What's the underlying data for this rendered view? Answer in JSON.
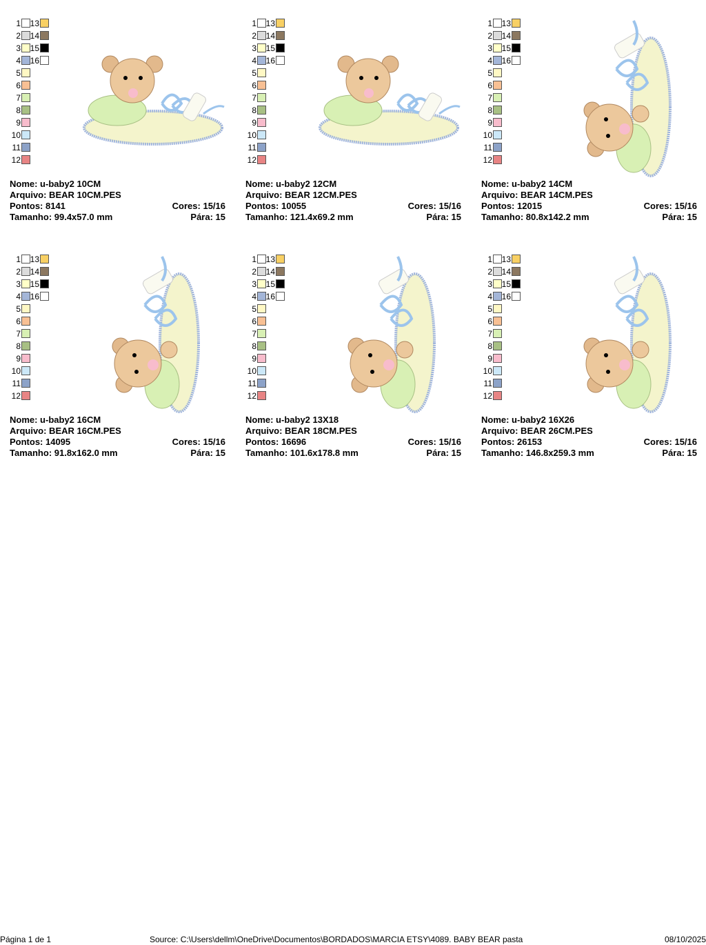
{
  "palette": [
    {
      "label": "1",
      "color": "#ffffff"
    },
    {
      "label": "2",
      "color": "#dcdcdc"
    },
    {
      "label": "3",
      "color": "#ffffc8"
    },
    {
      "label": "4",
      "color": "#a4b6d8"
    },
    {
      "label": "5",
      "color": "#fff8c4"
    },
    {
      "label": "6",
      "color": "#f8c094"
    },
    {
      "label": "7",
      "color": "#d8f0b4"
    },
    {
      "label": "8",
      "color": "#a8c084"
    },
    {
      "label": "9",
      "color": "#f8bccc"
    },
    {
      "label": "10",
      "color": "#cce8f8"
    },
    {
      "label": "11",
      "color": "#8ca2c8"
    },
    {
      "label": "12",
      "color": "#e88484"
    },
    {
      "label": "13",
      "color": "#f8d064"
    },
    {
      "label": "14",
      "color": "#8c7860"
    },
    {
      "label": "15",
      "color": "#000000"
    },
    {
      "label": "16",
      "color": "#ffffff"
    }
  ],
  "designs": [
    {
      "name": "Nome: u-baby2 10CM",
      "file": "Arquivo: BEAR 10CM.PES",
      "points": "Pontos: 8141",
      "colors": "Cores: 15/16",
      "size": "Tamanho: 99.4x57.0 mm",
      "stops": "Pára: 15"
    },
    {
      "name": "Nome: u-baby2 12CM",
      "file": "Arquivo: BEAR 12CM.PES",
      "points": "Pontos: 10055",
      "colors": "Cores: 15/16",
      "size": "Tamanho: 121.4x69.2 mm",
      "stops": "Pára: 15"
    },
    {
      "name": "Nome: u-baby2 14CM",
      "file": "Arquivo: BEAR 14CM.PES",
      "points": "Pontos: 12015",
      "colors": "Cores: 15/16",
      "size": "Tamanho: 80.8x142.2 mm",
      "stops": "Pára: 15"
    },
    {
      "name": "Nome: u-baby2 16CM",
      "file": "Arquivo: BEAR 16CM.PES",
      "points": "Pontos: 14095",
      "colors": "Cores: 15/16",
      "size": "Tamanho: 91.8x162.0 mm",
      "stops": "Pára: 15"
    },
    {
      "name": "Nome: u-baby2 13X18",
      "file": "Arquivo: BEAR 18CM.PES",
      "points": "Pontos: 16696",
      "colors": "Cores: 15/16",
      "size": "Tamanho: 101.6x178.8 mm",
      "stops": "Pára: 15"
    },
    {
      "name": "Nome: u-baby2 16X26",
      "file": "Arquivo: BEAR 26CM.PES",
      "points": "Pontos: 26153",
      "colors": "Cores: 15/16",
      "size": "Tamanho: 146.8x259.3 mm",
      "stops": "Pára: 15"
    }
  ],
  "footer": {
    "page": "Página 1 de 1",
    "source": "Source: C:\\Users\\dellm\\OneDrive\\Documentos\\BORDADOS\\MARCIA ETSY\\4089. BABY BEAR pasta",
    "date": "08/10/2025"
  }
}
